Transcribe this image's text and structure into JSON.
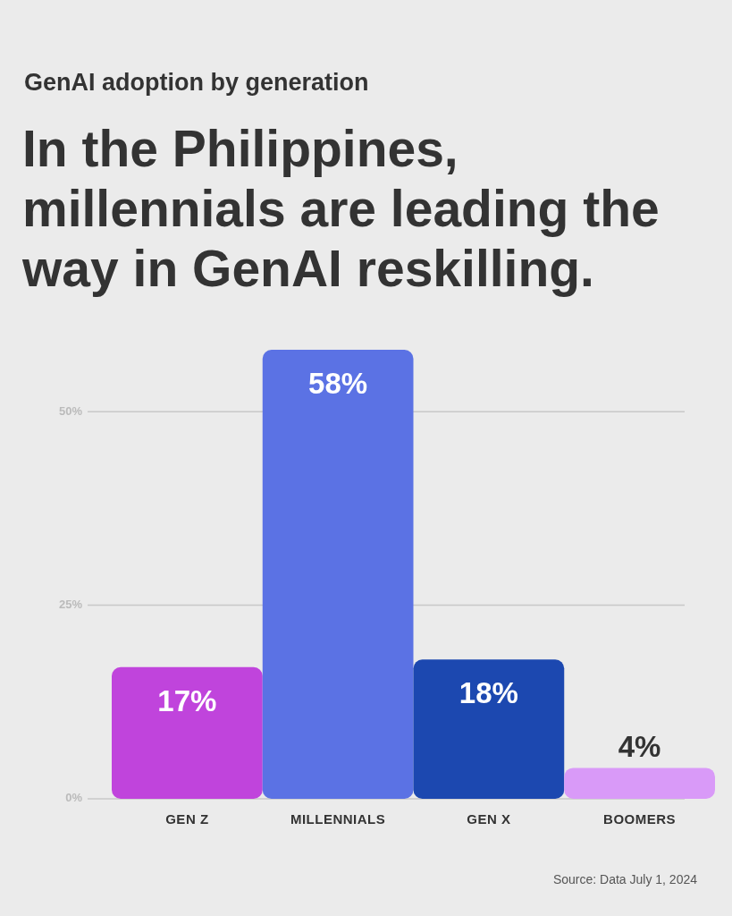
{
  "chart_data": {
    "type": "bar",
    "subtitle": "GenAI adoption by generation",
    "title": "In the Philippines, millennials are leading the way in GenAI reskilling.",
    "categories": [
      "GEN Z",
      "MILLENNIALS",
      "GEN X",
      "BOOMERS"
    ],
    "values": [
      17,
      58,
      18,
      4
    ],
    "value_labels": [
      "17%",
      "58%",
      "18%",
      "4%"
    ],
    "colors": [
      "#c044dc",
      "#5b72e4",
      "#1c48b0",
      "#d99af8"
    ],
    "ylim": [
      0,
      58
    ],
    "yticks": [
      {
        "value": 0,
        "label": "0%"
      },
      {
        "value": 25,
        "label": "25%"
      },
      {
        "value": 50,
        "label": "50%"
      }
    ],
    "grid": "y",
    "annotations": [
      "Source: Data July 1, 2024"
    ]
  }
}
